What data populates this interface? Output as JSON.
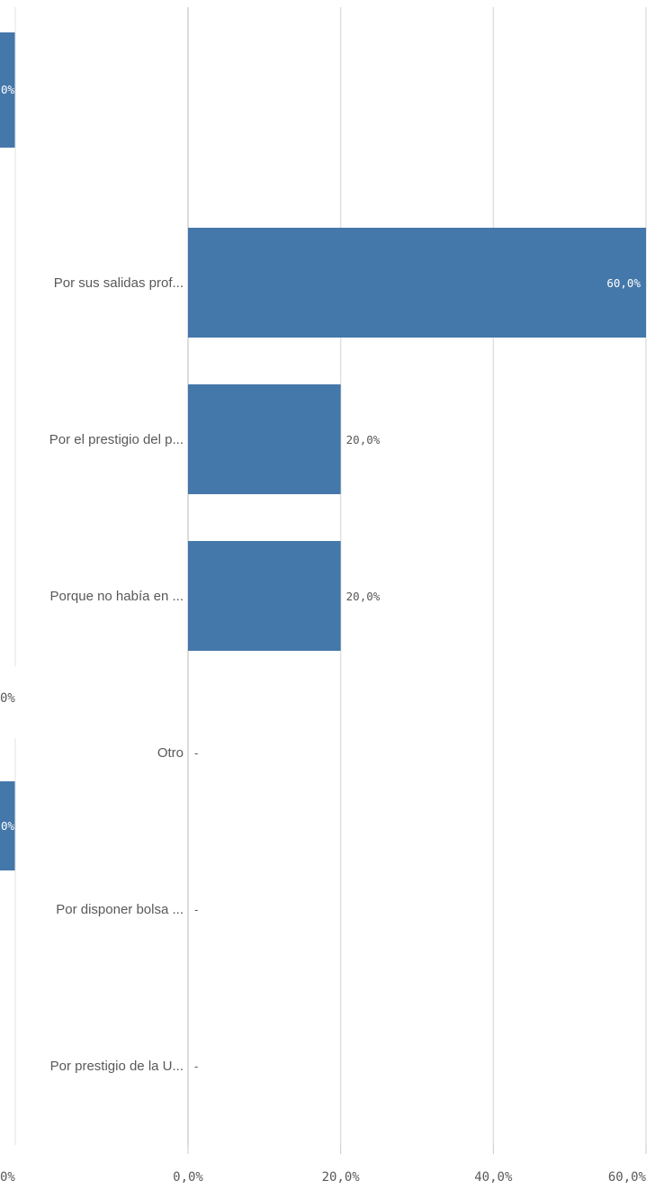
{
  "left_panel_fragments": {
    "top_bar_value": "0%",
    "top_axis_tick": "0%",
    "bottom_bar_value": "0%",
    "bottom_axis_tick": "0%"
  },
  "chart_data": {
    "type": "bar",
    "orientation": "horizontal",
    "categories": [
      "Por sus salidas prof...",
      "Por el prestigio del p...",
      "Porque no había en ...",
      "Otro",
      "Por disponer bolsa ...",
      "Por prestigio de la U..."
    ],
    "values": [
      60,
      20,
      20,
      null,
      null,
      null
    ],
    "value_labels": [
      "60,0%",
      "20,0%",
      "20,0%",
      "-",
      "-",
      "-"
    ],
    "x_ticks": [
      "0,0%",
      "20,0%",
      "40,0%",
      "60,0%"
    ],
    "xlim": [
      0,
      60
    ],
    "grid": true,
    "bar_color": "#4477aa"
  }
}
